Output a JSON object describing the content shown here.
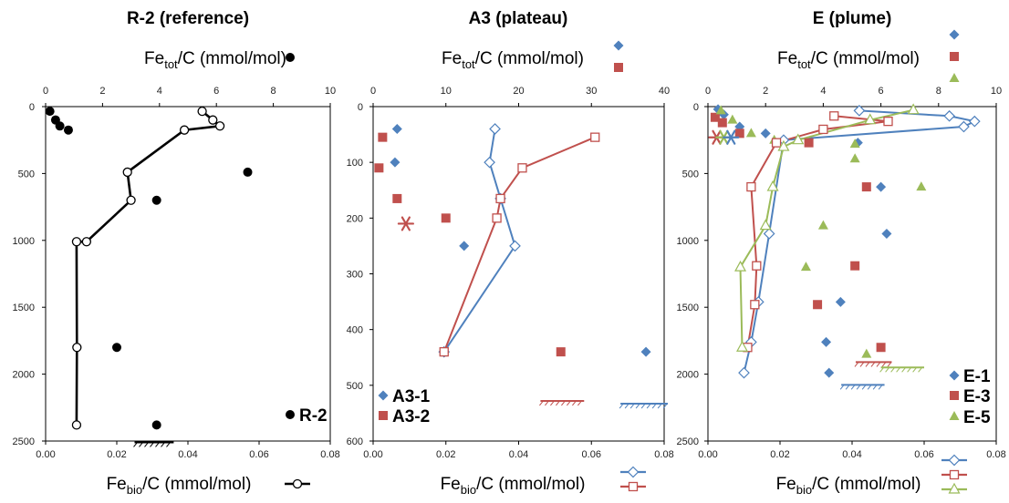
{
  "colors": {
    "blue": "#4F81BD",
    "red": "#C0504D",
    "green": "#9BBB59",
    "black": "#000000"
  },
  "chart_data": [
    {
      "type": "scatter",
      "title": "R-2 (reference)",
      "top_axis": {
        "label": "Fe",
        "sub": "tot",
        "suffix": "/C (mmol/mol)",
        "range": [
          0,
          10
        ],
        "ticks": [
          "0",
          "2",
          "4",
          "6",
          "8",
          "10"
        ]
      },
      "bottom_axis": {
        "label": "Fe",
        "sub": "bio",
        "suffix": "/C (mmol/mol)",
        "range": [
          0,
          0.08
        ],
        "ticks": [
          "0.00",
          "0.02",
          "0.04",
          "0.06",
          "0.08"
        ]
      },
      "y_axis": {
        "range": [
          0,
          2500
        ],
        "inverted": true,
        "ticks": [
          "0",
          "500",
          "1000",
          "1500",
          "2000",
          "2500"
        ]
      },
      "legend": [
        "R-2"
      ],
      "series": [
        {
          "name": "R-2",
          "axis": "top",
          "marker": "circle",
          "color": "black",
          "points": [
            [
              0.15,
              35
            ],
            [
              0.35,
              100
            ],
            [
              0.5,
              145
            ],
            [
              0.8,
              175
            ],
            [
              7.1,
              490
            ],
            [
              3.9,
              700
            ],
            [
              2.5,
              1800
            ],
            [
              3.9,
              2380
            ]
          ]
        },
        {
          "name": "R-2",
          "axis": "bottom",
          "marker": "open-circle",
          "line": true,
          "color": "black",
          "points": [
            [
              0.044,
              35
            ],
            [
              0.047,
              100
            ],
            [
              0.049,
              145
            ],
            [
              0.039,
              175
            ],
            [
              0.023,
              490
            ],
            [
              0.024,
              700
            ],
            [
              0.0115,
              1010
            ],
            [
              0.0087,
              1010
            ],
            [
              0.0088,
              1800
            ],
            [
              0.0087,
              2380
            ]
          ]
        }
      ],
      "bars": [
        {
          "x": [
            0.025,
            0.036
          ],
          "y": 2510,
          "color": "black"
        }
      ]
    },
    {
      "type": "scatter",
      "title": "A3 (plateau)",
      "top_axis": {
        "label": "Fe",
        "sub": "tot",
        "suffix": "/C (mmol/mol)",
        "range": [
          0,
          40
        ],
        "ticks": [
          "0",
          "10",
          "20",
          "30",
          "40"
        ]
      },
      "bottom_axis": {
        "label": "Fe",
        "sub": "bio",
        "suffix": "/C (mmol/mol)",
        "range": [
          0,
          0.08
        ],
        "ticks": [
          "0.00",
          "0.02",
          "0.04",
          "0.06",
          "0.08"
        ]
      },
      "y_axis": {
        "range": [
          0,
          600
        ],
        "inverted": true,
        "ticks": [
          "0",
          "100",
          "200",
          "300",
          "400",
          "500",
          "600"
        ]
      },
      "legend": [
        "A3-1",
        "A3-2"
      ],
      "series": [
        {
          "name": "A3-1",
          "axis": "top",
          "marker": "diamond",
          "color": "blue",
          "points": [
            [
              3.3,
              40
            ],
            [
              3.0,
              100
            ],
            [
              12.5,
              250
            ],
            [
              37.5,
              440
            ]
          ]
        },
        {
          "name": "A3-2",
          "axis": "top",
          "marker": "square",
          "color": "red",
          "points": [
            [
              1.3,
              55
            ],
            [
              0.8,
              110
            ],
            [
              3.3,
              165
            ],
            [
              10.0,
              200
            ],
            [
              25.8,
              440
            ]
          ]
        },
        {
          "name": "A3-1",
          "axis": "bottom",
          "marker": "open-diamond",
          "line": true,
          "color": "blue",
          "points": [
            [
              0.0335,
              40
            ],
            [
              0.032,
              100
            ],
            [
              0.035,
              165
            ],
            [
              0.039,
              250
            ],
            [
              0.0195,
              440
            ]
          ]
        },
        {
          "name": "A3-2",
          "axis": "bottom",
          "marker": "open-square",
          "line": true,
          "color": "red",
          "points": [
            [
              0.061,
              55
            ],
            [
              0.041,
              110
            ],
            [
              0.035,
              165
            ],
            [
              0.034,
              200
            ],
            [
              0.0195,
              440
            ]
          ]
        }
      ],
      "extra_markers": [
        {
          "type": "asterisk",
          "axis": "top",
          "x": 4.5,
          "y": 210,
          "color": "red"
        }
      ],
      "bars": [
        {
          "x": [
            0.046,
            0.058
          ],
          "y": 528,
          "color": "red"
        },
        {
          "x": [
            0.068,
            0.081
          ],
          "y": 533,
          "color": "blue"
        }
      ]
    },
    {
      "type": "scatter",
      "title": "E (plume)",
      "top_axis": {
        "label": "Fe",
        "sub": "tot",
        "suffix": "/C (mmol/mol)",
        "range": [
          0,
          10
        ],
        "ticks": [
          "0",
          "2",
          "4",
          "6",
          "8",
          "10"
        ]
      },
      "bottom_axis": {
        "label": "Fe",
        "sub": "bio",
        "suffix": "/C (mmol/mol)",
        "range": [
          0,
          0.08
        ],
        "ticks": [
          "0.00",
          "0.02",
          "0.04",
          "0.06",
          "0.08"
        ]
      },
      "y_axis": {
        "range": [
          0,
          2500
        ],
        "inverted": true,
        "ticks": [
          "0",
          "500",
          "1000",
          "1500",
          "2000",
          "2500"
        ]
      },
      "legend": [
        "E-1",
        "E-3",
        "E-5"
      ],
      "series": [
        {
          "name": "E-1",
          "axis": "top",
          "marker": "diamond",
          "color": "blue",
          "points": [
            [
              0.35,
              20
            ],
            [
              0.55,
              60
            ],
            [
              1.1,
              150
            ],
            [
              2.0,
              200
            ],
            [
              5.2,
              270
            ],
            [
              6.0,
              600
            ],
            [
              6.2,
              950
            ],
            [
              4.6,
              1460
            ],
            [
              4.1,
              1760
            ],
            [
              4.2,
              1990
            ]
          ]
        },
        {
          "name": "E-3",
          "axis": "top",
          "marker": "square",
          "color": "red",
          "points": [
            [
              0.25,
              80
            ],
            [
              0.5,
              120
            ],
            [
              1.1,
              200
            ],
            [
              3.5,
              270
            ],
            [
              5.5,
              600
            ],
            [
              5.1,
              1190
            ],
            [
              3.8,
              1480
            ],
            [
              6.0,
              1800
            ]
          ]
        },
        {
          "name": "E-5",
          "axis": "top",
          "marker": "triangle",
          "color": "green",
          "points": [
            [
              0.45,
              30
            ],
            [
              0.85,
              100
            ],
            [
              1.5,
              200
            ],
            [
              2.3,
              250
            ],
            [
              5.1,
              280
            ],
            [
              7.4,
              600
            ],
            [
              5.1,
              390
            ],
            [
              4.0,
              890
            ],
            [
              3.4,
              1200
            ],
            [
              5.5,
              1850
            ]
          ]
        },
        {
          "name": "E-1",
          "axis": "bottom",
          "marker": "open-diamond",
          "line": true,
          "color": "blue",
          "points": [
            [
              0.042,
              30
            ],
            [
              0.067,
              70
            ],
            [
              0.074,
              110
            ],
            [
              0.071,
              150
            ],
            [
              0.021,
              250
            ],
            [
              0.017,
              950
            ],
            [
              0.014,
              1460
            ],
            [
              0.012,
              1760
            ],
            [
              0.01,
              1990
            ]
          ]
        },
        {
          "name": "E-3",
          "axis": "bottom",
          "marker": "open-square",
          "line": true,
          "color": "red",
          "points": [
            [
              0.035,
              70
            ],
            [
              0.05,
              110
            ],
            [
              0.032,
              170
            ],
            [
              0.019,
              270
            ],
            [
              0.012,
              600
            ],
            [
              0.0135,
              1190
            ],
            [
              0.013,
              1480
            ],
            [
              0.011,
              1800
            ]
          ]
        },
        {
          "name": "E-5",
          "axis": "bottom",
          "marker": "open-triangle",
          "line": true,
          "color": "green",
          "points": [
            [
              0.057,
              25
            ],
            [
              0.045,
              100
            ],
            [
              0.025,
              250
            ],
            [
              0.021,
              300
            ],
            [
              0.018,
              600
            ],
            [
              0.016,
              890
            ],
            [
              0.009,
              1200
            ],
            [
              0.0095,
              1800
            ]
          ]
        }
      ],
      "extra_markers": [
        {
          "type": "asterisk",
          "axis": "top",
          "x": 0.3,
          "y": 230,
          "color": "red"
        },
        {
          "type": "asterisk",
          "axis": "top",
          "x": 0.55,
          "y": 230,
          "color": "green"
        },
        {
          "type": "asterisk",
          "axis": "top",
          "x": 0.8,
          "y": 230,
          "color": "blue"
        }
      ],
      "bars": [
        {
          "x": [
            0.037,
            0.049
          ],
          "y": 2080,
          "color": "blue"
        },
        {
          "x": [
            0.041,
            0.051
          ],
          "y": 1910,
          "color": "red"
        },
        {
          "x": [
            0.048,
            0.06
          ],
          "y": 1950,
          "color": "green"
        }
      ]
    }
  ]
}
